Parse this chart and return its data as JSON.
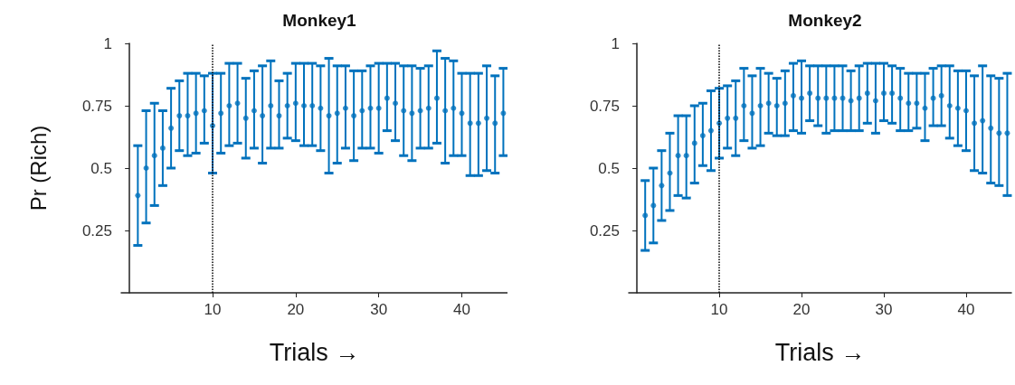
{
  "chart_data": [
    {
      "type": "scatter",
      "title": "Monkey1",
      "xlabel": "Trials →",
      "ylabel": "Pr (Rich)",
      "xlim": [
        -1,
        45.5
      ],
      "xticks": [
        10,
        20,
        30,
        40
      ],
      "ylim": [
        0,
        1
      ],
      "yticks": [
        0.25,
        0.5,
        0.75,
        1
      ],
      "marker": "circle",
      "x": [
        1,
        2,
        3,
        4,
        5,
        6,
        7,
        8,
        9,
        10,
        11,
        12,
        13,
        14,
        15,
        16,
        17,
        18,
        19,
        20,
        21,
        22,
        23,
        24,
        25,
        26,
        27,
        28,
        29,
        30,
        31,
        32,
        33,
        34,
        35,
        36,
        37,
        38,
        39,
        40,
        41,
        42,
        43,
        44,
        45
      ],
      "series": [
        {
          "color": "#0072bd",
          "values": [
            0.39,
            0.5,
            0.55,
            0.58,
            0.66,
            0.71,
            0.71,
            0.72,
            0.73,
            0.67,
            0.72,
            0.75,
            0.76,
            0.7,
            0.73,
            0.71,
            0.75,
            0.71,
            0.75,
            0.76,
            0.75,
            0.75,
            0.74,
            0.71,
            0.72,
            0.74,
            0.71,
            0.73,
            0.74,
            0.74,
            0.78,
            0.76,
            0.73,
            0.72,
            0.73,
            0.74,
            0.78,
            0.73,
            0.74,
            0.72,
            0.68,
            0.68,
            0.7,
            0.68,
            0.72
          ],
          "errors": [
            [
              0.19,
              0.59
            ],
            [
              0.28,
              0.73
            ],
            [
              0.35,
              0.76
            ],
            [
              0.43,
              0.73
            ],
            [
              0.5,
              0.82
            ],
            [
              0.57,
              0.85
            ],
            [
              0.55,
              0.88
            ],
            [
              0.56,
              0.88
            ],
            [
              0.6,
              0.87
            ],
            [
              0.48,
              0.88
            ],
            [
              0.56,
              0.88
            ],
            [
              0.59,
              0.92
            ],
            [
              0.6,
              0.92
            ],
            [
              0.54,
              0.86
            ],
            [
              0.58,
              0.89
            ],
            [
              0.52,
              0.91
            ],
            [
              0.58,
              0.93
            ],
            [
              0.58,
              0.85
            ],
            [
              0.62,
              0.88
            ],
            [
              0.61,
              0.92
            ],
            [
              0.59,
              0.92
            ],
            [
              0.59,
              0.92
            ],
            [
              0.57,
              0.91
            ],
            [
              0.48,
              0.94
            ],
            [
              0.52,
              0.91
            ],
            [
              0.58,
              0.91
            ],
            [
              0.53,
              0.89
            ],
            [
              0.58,
              0.89
            ],
            [
              0.58,
              0.91
            ],
            [
              0.56,
              0.92
            ],
            [
              0.65,
              0.92
            ],
            [
              0.61,
              0.92
            ],
            [
              0.55,
              0.91
            ],
            [
              0.53,
              0.91
            ],
            [
              0.58,
              0.9
            ],
            [
              0.58,
              0.91
            ],
            [
              0.6,
              0.97
            ],
            [
              0.52,
              0.94
            ],
            [
              0.55,
              0.93
            ],
            [
              0.55,
              0.88
            ],
            [
              0.47,
              0.88
            ],
            [
              0.47,
              0.88
            ],
            [
              0.49,
              0.91
            ],
            [
              0.48,
              0.87
            ],
            [
              0.55,
              0.9
            ]
          ]
        }
      ],
      "ref_lines": [
        {
          "axis": "x",
          "value": 10,
          "color": "#000000",
          "line_style": "dotted"
        }
      ]
    },
    {
      "type": "scatter",
      "title": "Monkey2",
      "xlabel": "Trials →",
      "xlim": [
        -1,
        45.5
      ],
      "xticks": [
        10,
        20,
        30,
        40
      ],
      "ylim": [
        0,
        1
      ],
      "yticks": [
        0.25,
        0.5,
        0.75,
        1
      ],
      "marker": "circle",
      "x": [
        1,
        2,
        3,
        4,
        5,
        6,
        7,
        8,
        9,
        10,
        11,
        12,
        13,
        14,
        15,
        16,
        17,
        18,
        19,
        20,
        21,
        22,
        23,
        24,
        25,
        26,
        27,
        28,
        29,
        30,
        31,
        32,
        33,
        34,
        35,
        36,
        37,
        38,
        39,
        40,
        41,
        42,
        43,
        44,
        45
      ],
      "series": [
        {
          "color": "#0072bd",
          "values": [
            0.31,
            0.35,
            0.43,
            0.48,
            0.55,
            0.55,
            0.6,
            0.63,
            0.65,
            0.68,
            0.7,
            0.7,
            0.75,
            0.72,
            0.75,
            0.76,
            0.75,
            0.76,
            0.79,
            0.78,
            0.8,
            0.78,
            0.78,
            0.78,
            0.78,
            0.77,
            0.78,
            0.8,
            0.77,
            0.8,
            0.8,
            0.78,
            0.76,
            0.76,
            0.74,
            0.78,
            0.79,
            0.75,
            0.74,
            0.73,
            0.68,
            0.69,
            0.66,
            0.64,
            0.64
          ],
          "errors": [
            [
              0.17,
              0.45
            ],
            [
              0.2,
              0.5
            ],
            [
              0.29,
              0.57
            ],
            [
              0.33,
              0.64
            ],
            [
              0.39,
              0.71
            ],
            [
              0.38,
              0.71
            ],
            [
              0.44,
              0.75
            ],
            [
              0.51,
              0.76
            ],
            [
              0.49,
              0.81
            ],
            [
              0.54,
              0.82
            ],
            [
              0.58,
              0.83
            ],
            [
              0.55,
              0.85
            ],
            [
              0.61,
              0.9
            ],
            [
              0.58,
              0.87
            ],
            [
              0.59,
              0.9
            ],
            [
              0.64,
              0.88
            ],
            [
              0.63,
              0.86
            ],
            [
              0.63,
              0.89
            ],
            [
              0.65,
              0.92
            ],
            [
              0.64,
              0.93
            ],
            [
              0.69,
              0.91
            ],
            [
              0.67,
              0.91
            ],
            [
              0.64,
              0.91
            ],
            [
              0.65,
              0.91
            ],
            [
              0.65,
              0.91
            ],
            [
              0.65,
              0.89
            ],
            [
              0.65,
              0.91
            ],
            [
              0.68,
              0.92
            ],
            [
              0.64,
              0.92
            ],
            [
              0.69,
              0.92
            ],
            [
              0.68,
              0.91
            ],
            [
              0.65,
              0.9
            ],
            [
              0.65,
              0.88
            ],
            [
              0.66,
              0.88
            ],
            [
              0.61,
              0.88
            ],
            [
              0.67,
              0.9
            ],
            [
              0.67,
              0.91
            ],
            [
              0.62,
              0.91
            ],
            [
              0.59,
              0.89
            ],
            [
              0.57,
              0.89
            ],
            [
              0.49,
              0.87
            ],
            [
              0.48,
              0.91
            ],
            [
              0.44,
              0.87
            ],
            [
              0.43,
              0.86
            ],
            [
              0.39,
              0.88
            ]
          ]
        }
      ],
      "ref_lines": [
        {
          "axis": "x",
          "value": 10,
          "color": "#000000",
          "line_style": "dotted"
        }
      ]
    }
  ]
}
